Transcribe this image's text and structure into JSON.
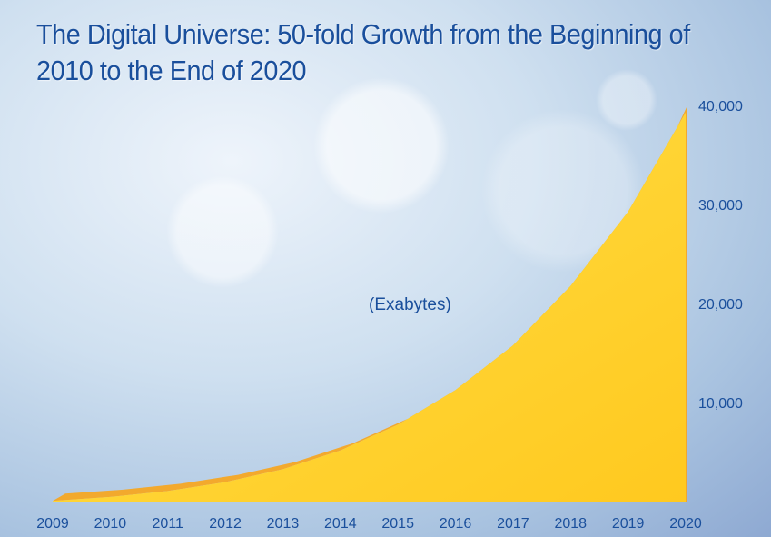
{
  "chart_data": {
    "type": "area",
    "title": "The Digital Universe: 50-fold Growth from the Beginning of 2010 to the End of 2020",
    "unit_label": "(Exabytes)",
    "categories": [
      "2009",
      "2010",
      "2011",
      "2012",
      "2013",
      "2014",
      "2015",
      "2016",
      "2017",
      "2018",
      "2019",
      "2020"
    ],
    "values": [
      800,
      1200,
      1800,
      2700,
      4000,
      5900,
      8500,
      12000,
      16500,
      22500,
      30000,
      40000
    ],
    "y_ticks": [
      "10,000",
      "20,000",
      "30,000",
      "40,000"
    ],
    "y_tick_values": [
      10000,
      20000,
      30000,
      40000
    ],
    "ylim": [
      0,
      40000
    ],
    "colors": {
      "fill": "#ffd633",
      "edge": "#f5a623",
      "text": "#1a4f9c"
    }
  }
}
